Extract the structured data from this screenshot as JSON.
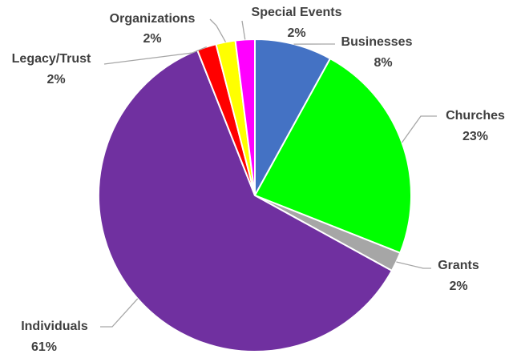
{
  "chart_data": {
    "type": "pie",
    "categories": [
      "Businesses",
      "Churches",
      "Grants",
      "Individuals",
      "Legacy/Trust",
      "Organizations",
      "Special Events"
    ],
    "values": [
      8,
      23,
      2,
      61,
      2,
      2,
      2
    ],
    "value_labels": [
      "8%",
      "23%",
      "2%",
      "61%",
      "2%",
      "2%",
      "2%"
    ],
    "colors": [
      "#4472c4",
      "#00ff00",
      "#a6a6a6",
      "#7030a0",
      "#ff0000",
      "#ffff00",
      "#ff00ff"
    ]
  }
}
